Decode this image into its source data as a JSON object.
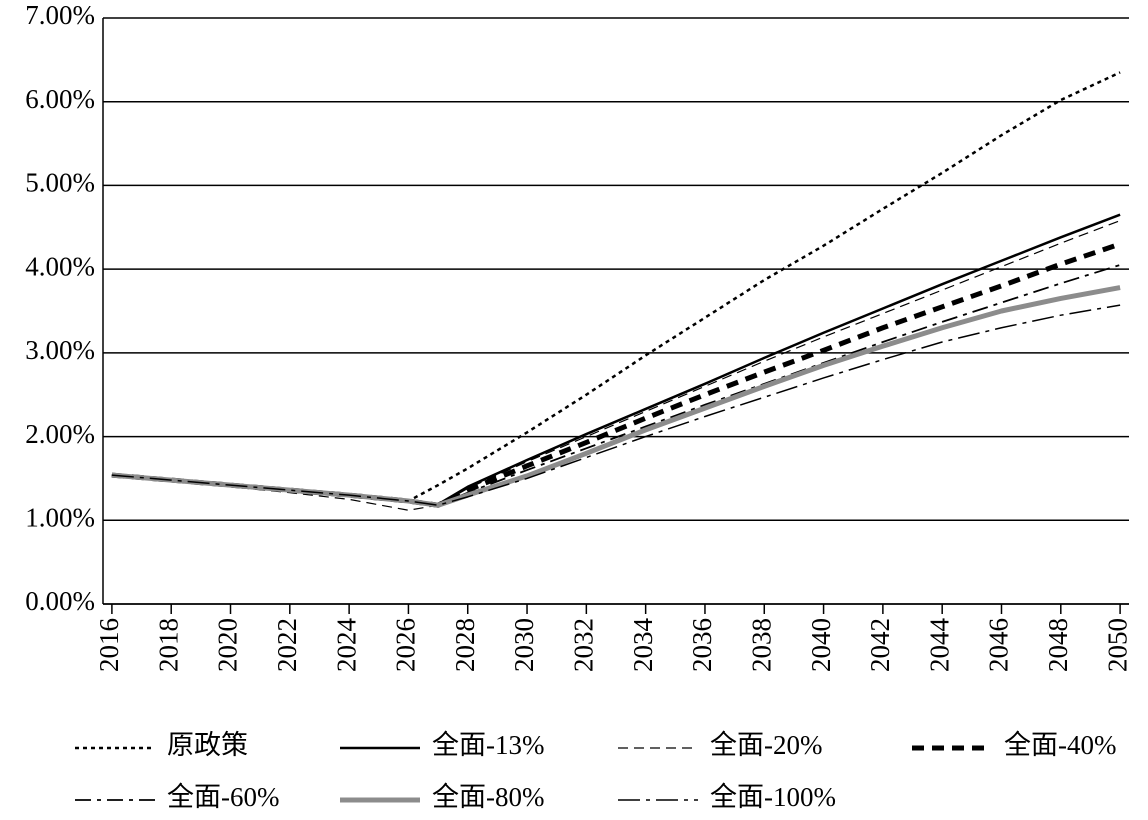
{
  "chart_data": {
    "type": "line",
    "x": [
      2016,
      2018,
      2020,
      2022,
      2024,
      2026,
      2027,
      2028,
      2030,
      2032,
      2034,
      2036,
      2038,
      2040,
      2042,
      2044,
      2046,
      2048,
      2050
    ],
    "xlim": [
      2015.7,
      2050.3
    ],
    "xticks": [
      2016,
      2018,
      2020,
      2022,
      2024,
      2026,
      2028,
      2030,
      2032,
      2034,
      2036,
      2038,
      2040,
      2042,
      2044,
      2046,
      2048,
      2050
    ],
    "ylim": [
      0,
      7
    ],
    "yticks": [
      {
        "value": 0,
        "label": "0.00%"
      },
      {
        "value": 1,
        "label": "1.00%"
      },
      {
        "value": 2,
        "label": "2.00%"
      },
      {
        "value": 3,
        "label": "3.00%"
      },
      {
        "value": 4,
        "label": "4.00%"
      },
      {
        "value": 5,
        "label": "5.00%"
      },
      {
        "value": 6,
        "label": "6.00%"
      },
      {
        "value": 7,
        "label": "7.00%"
      }
    ],
    "grid": true,
    "series": [
      {
        "name": "原政策",
        "color": "#000000",
        "values": [
          1.54,
          1.48,
          1.42,
          1.36,
          1.3,
          1.23,
          1.42,
          1.62,
          2.05,
          2.5,
          2.97,
          3.42,
          3.87,
          4.28,
          4.72,
          5.15,
          5.6,
          6.02,
          6.35
        ]
      },
      {
        "name": "全面-13%",
        "color": "#000000",
        "values": [
          1.54,
          1.48,
          1.42,
          1.36,
          1.3,
          1.23,
          1.19,
          1.4,
          1.72,
          2.03,
          2.33,
          2.63,
          2.94,
          3.24,
          3.53,
          3.82,
          4.1,
          4.38,
          4.65
        ]
      },
      {
        "name": "全面-20%",
        "color": "#000000",
        "values": [
          1.54,
          1.47,
          1.4,
          1.33,
          1.25,
          1.12,
          1.18,
          1.38,
          1.7,
          2.0,
          2.3,
          2.6,
          2.9,
          3.19,
          3.47,
          3.75,
          4.03,
          4.31,
          4.58
        ]
      },
      {
        "name": "全面-40%",
        "color": "#000000",
        "values": [
          1.54,
          1.48,
          1.42,
          1.36,
          1.3,
          1.23,
          1.18,
          1.36,
          1.65,
          1.93,
          2.22,
          2.5,
          2.77,
          3.03,
          3.3,
          3.55,
          3.8,
          4.06,
          4.3
        ]
      },
      {
        "name": "全面-60%",
        "color": "#000000",
        "values": [
          1.54,
          1.48,
          1.42,
          1.36,
          1.3,
          1.23,
          1.18,
          1.33,
          1.6,
          1.86,
          2.12,
          2.38,
          2.63,
          2.88,
          3.13,
          3.37,
          3.6,
          3.83,
          4.05
        ]
      },
      {
        "name": "全面-80%",
        "color": "#8c8c8c",
        "values": [
          1.54,
          1.48,
          1.42,
          1.36,
          1.3,
          1.23,
          1.18,
          1.3,
          1.53,
          1.8,
          2.08,
          2.34,
          2.6,
          2.85,
          3.08,
          3.3,
          3.5,
          3.65,
          3.78
        ]
      },
      {
        "name": "全面-100%",
        "color": "#000000",
        "values": [
          1.54,
          1.48,
          1.42,
          1.36,
          1.3,
          1.23,
          1.18,
          1.28,
          1.5,
          1.75,
          2.0,
          2.24,
          2.47,
          2.7,
          2.92,
          3.13,
          3.3,
          3.45,
          3.57
        ]
      }
    ]
  }
}
